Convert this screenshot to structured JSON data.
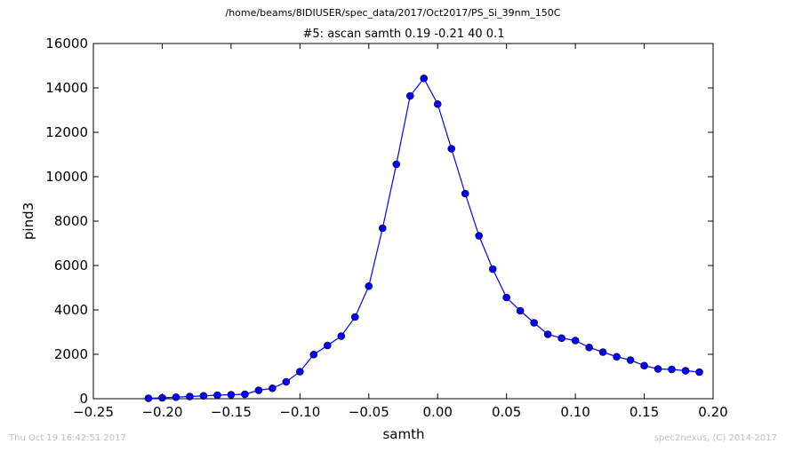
{
  "chart_data": {
    "type": "line",
    "suptitle": "/home/beams/8IDIUSER/spec_data/2017/Oct2017/PS_Si_39nm_150C",
    "title": "#5: ascan  samth 0.19 -0.21  40 0.1",
    "xlabel": "samth",
    "ylabel": "pind3",
    "xlim": [
      -0.25,
      0.2
    ],
    "ylim": [
      0,
      16000
    ],
    "xticks": [
      -0.25,
      -0.2,
      -0.15,
      -0.1,
      -0.05,
      0.0,
      0.05,
      0.1,
      0.15,
      0.2
    ],
    "xtick_labels": [
      "−0.25",
      "−0.20",
      "−0.15",
      "−0.10",
      "−0.05",
      "0.00",
      "0.05",
      "0.10",
      "0.15",
      "0.20"
    ],
    "yticks": [
      0,
      2000,
      4000,
      6000,
      8000,
      10000,
      12000,
      14000,
      16000
    ],
    "ytick_labels": [
      "0",
      "2000",
      "4000",
      "6000",
      "8000",
      "10000",
      "12000",
      "14000",
      "16000"
    ],
    "grid": false,
    "legend": "none",
    "series_color": "#0000ff",
    "x": [
      -0.21,
      -0.2,
      -0.19,
      -0.18,
      -0.17,
      -0.16,
      -0.15,
      -0.14,
      -0.13,
      -0.12,
      -0.11,
      -0.1,
      -0.09,
      -0.08,
      -0.07,
      -0.06,
      -0.05,
      -0.04,
      -0.03,
      -0.02,
      -0.01,
      0.0,
      0.01,
      0.02,
      0.03,
      0.04,
      0.05,
      0.06,
      0.07,
      0.08,
      0.09,
      0.1,
      0.11,
      0.12,
      0.13,
      0.14,
      0.15,
      0.16,
      0.17,
      0.18,
      0.19
    ],
    "y": [
      20,
      40,
      70,
      100,
      130,
      160,
      180,
      200,
      380,
      470,
      760,
      1220,
      1990,
      2400,
      2820,
      3680,
      5070,
      7680,
      10560,
      13640,
      14430,
      13270,
      11260,
      9240,
      7340,
      5840,
      4560,
      3960,
      3420,
      2900,
      2730,
      2620,
      2310,
      2100,
      1890,
      1740,
      1490,
      1340,
      1320,
      1260,
      1200
    ]
  },
  "footer": {
    "left": "Thu Oct 19 16:42:51 2017",
    "right": "spec2nexus, (C) 2014-2017"
  }
}
